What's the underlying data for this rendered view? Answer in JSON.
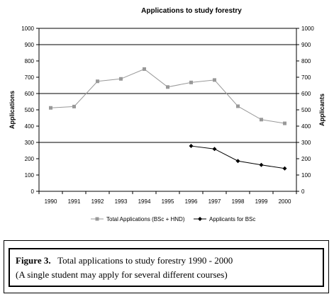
{
  "chart_data": {
    "type": "line",
    "title": "Applications to study forestry",
    "ylabel": "Applications",
    "ylabel_right": "Applicants",
    "xlabel": "",
    "ylim": [
      0,
      1000
    ],
    "yticks": [
      "0",
      "100",
      "200",
      "300",
      "400",
      "500",
      "600",
      "700",
      "800",
      "900",
      "1000"
    ],
    "categories": [
      "1990",
      "1991",
      "1992",
      "1993",
      "1994",
      "1995",
      "1996",
      "1997",
      "1998",
      "1999",
      "2000"
    ],
    "grid": "y, every 300",
    "legend": "bottom",
    "series": [
      {
        "name": "Total Applications (BSc + HND)",
        "marker": "square",
        "color": "#999999",
        "values": [
          512,
          520,
          675,
          690,
          750,
          640,
          668,
          683,
          522,
          440,
          417
        ]
      },
      {
        "name": "Applicants for BSc",
        "marker": "diamond",
        "color": "#000000",
        "values": [
          null,
          null,
          null,
          null,
          null,
          null,
          278,
          260,
          186,
          162,
          140
        ]
      }
    ]
  },
  "caption": {
    "figure_label": "Figure 3.",
    "figure_text": "Total applications to study forestry  1990 - 2000",
    "note": "(A single student may apply for several different courses)"
  }
}
